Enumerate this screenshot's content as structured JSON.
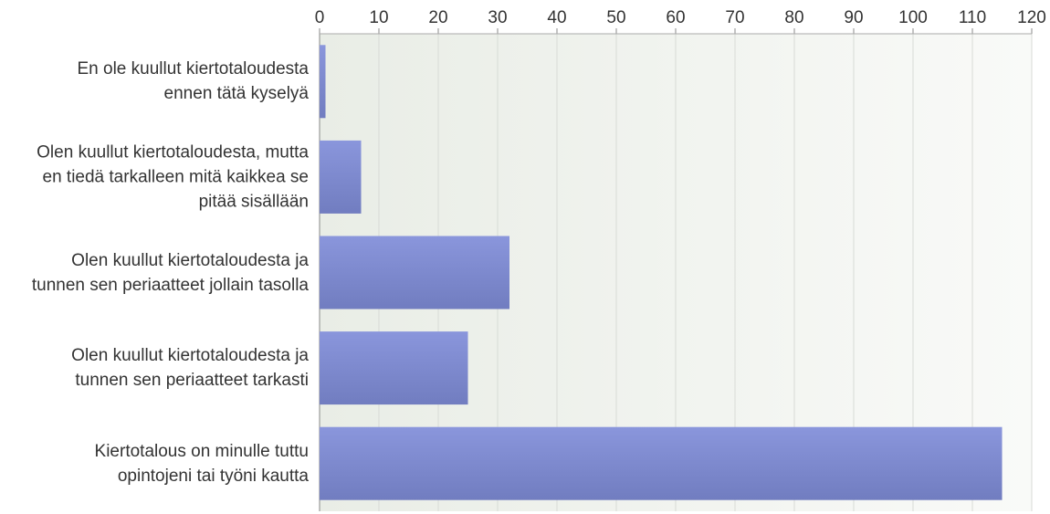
{
  "chart_data": {
    "type": "barh",
    "categories": [
      "En ole kuullut kiertotaloudesta\nennen tätä kyselyä",
      "Olen kuullut kiertotaloudesta, mutta\nen tiedä tarkalleen mitä kaikkea se\npitää sisällään",
      "Olen kuullut kiertotaloudesta ja\ntunnen sen periaatteet jollain tasolla",
      "Olen kuullut kiertotaloudesta ja\ntunnen sen periaatteet tarkasti",
      "Kiertotalous on minulle tuttu\nopintojeni tai työni kautta"
    ],
    "values": [
      1,
      7,
      32,
      25,
      115
    ],
    "color": "#7d89d0",
    "xlim": [
      0,
      120
    ],
    "xticks": [
      0,
      10,
      20,
      30,
      40,
      50,
      60,
      70,
      80,
      90,
      100,
      110,
      120
    ],
    "grid": true
  }
}
